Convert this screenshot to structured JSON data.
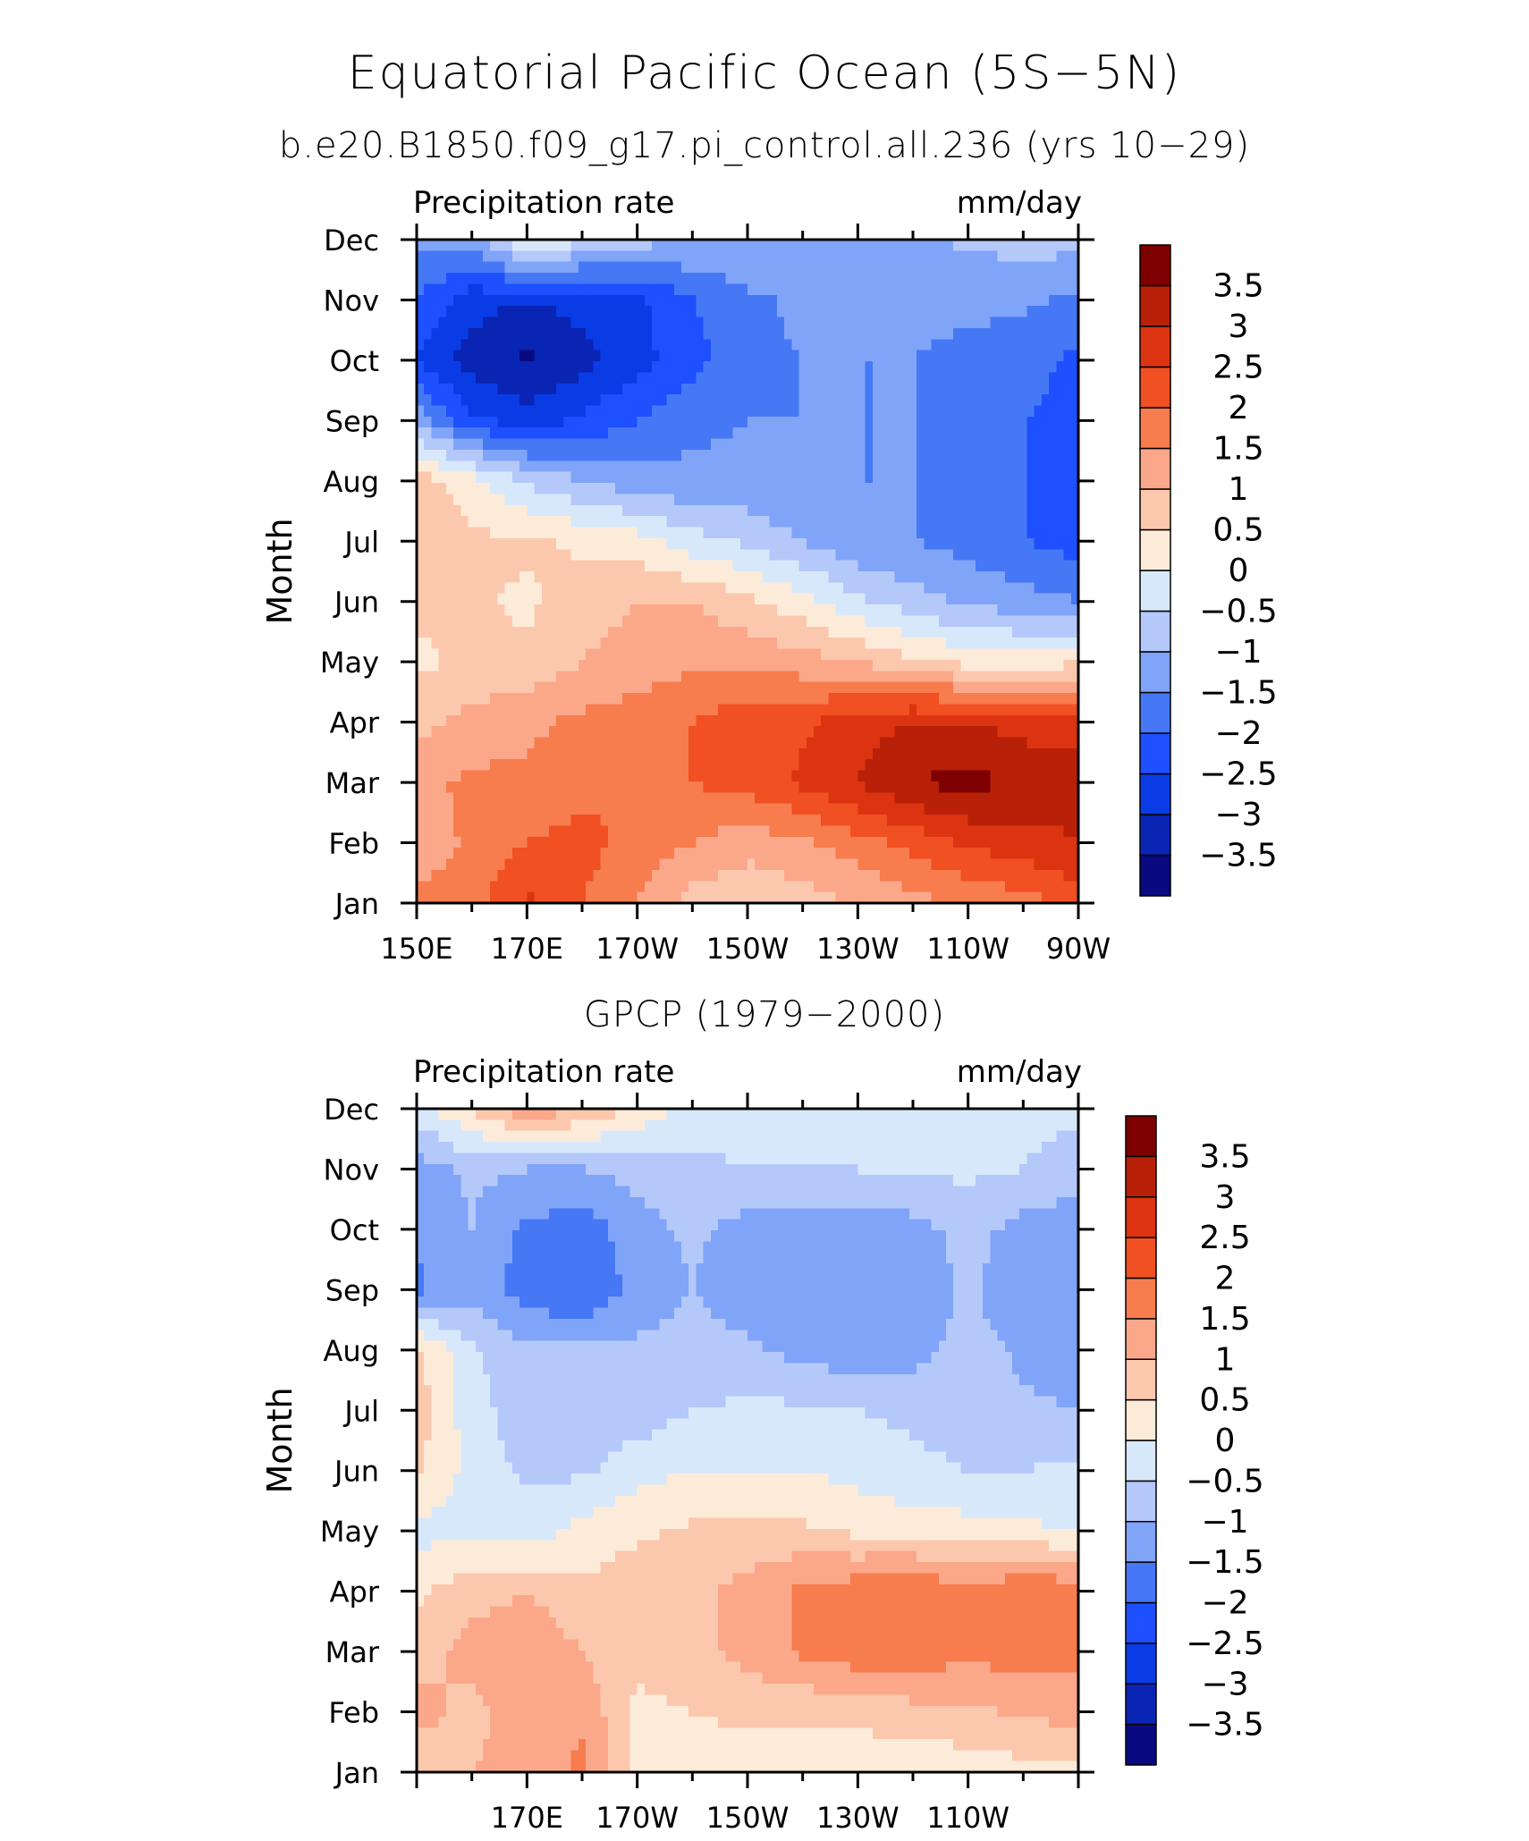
{
  "title": "Equatorial Pacific Ocean (5S−5N)",
  "color_levels": [
    -3.5,
    -3,
    -2.5,
    -2,
    -1.5,
    -1,
    -0.5,
    0,
    0.5,
    1,
    1.5,
    2,
    2.5,
    3,
    3.5
  ],
  "color_level_labels": [
    "−3.5",
    "−3",
    "−2.5",
    "−2",
    "−1.5",
    "−1",
    "−0.5",
    "0",
    "0.5",
    "1",
    "1.5",
    "2",
    "2.5",
    "3",
    "3.5"
  ],
  "palette": [
    "#0a0a80",
    "#0a24b4",
    "#0a3ce6",
    "#1e50ff",
    "#4678f5",
    "#80a4f8",
    "#b4c8fa",
    "#d8e8fb",
    "#fdebd9",
    "#fcc8ad",
    "#fba88a",
    "#f77c4e",
    "#f05022",
    "#dc3410",
    "#b82008",
    "#7e0000"
  ],
  "chart_data": [
    {
      "type": "heatmap",
      "title": "b.e20.B1850.f09_g17.pi_control.all.236 (yrs 10−29)",
      "field": "Precipitation rate",
      "units": "mm/day",
      "ylabel": "Month",
      "x_ticks": [
        "150E",
        "170E",
        "170W",
        "150W",
        "130W",
        "110W",
        "90W"
      ],
      "y_ticks": [
        "Jan",
        "Feb",
        "Mar",
        "Apr",
        "May",
        "Jun",
        "Jul",
        "Aug",
        "Sep",
        "Oct",
        "Nov",
        "Dec"
      ],
      "x": [
        150,
        160,
        170,
        180,
        190,
        200,
        210,
        220,
        230,
        240,
        250,
        260,
        270
      ],
      "months": [
        "Jan",
        "Feb",
        "Mar",
        "Apr",
        "May",
        "Jun",
        "Jul",
        "Aug",
        "Sep",
        "Oct",
        "Nov",
        "Dec"
      ],
      "values": [
        [
          1.6,
          1.8,
          2.6,
          2.0,
          1.5,
          0.8,
          0.6,
          0.8,
          1.0,
          1.3,
          1.6,
          1.8,
          2.2
        ],
        [
          1.2,
          1.6,
          2.0,
          2.2,
          1.8,
          1.5,
          1.2,
          1.4,
          1.8,
          2.2,
          2.6,
          2.8,
          3.0
        ],
        [
          1.4,
          1.6,
          1.6,
          1.8,
          2.0,
          2.0,
          2.2,
          2.6,
          3.0,
          3.5,
          3.7,
          3.4,
          3.2
        ],
        [
          0.8,
          1.2,
          1.4,
          1.6,
          1.8,
          2.0,
          2.3,
          2.4,
          2.8,
          3.0,
          3.0,
          2.8,
          2.8
        ],
        [
          0.4,
          0.6,
          0.6,
          1.0,
          1.2,
          1.4,
          1.4,
          1.2,
          1.0,
          0.6,
          0.3,
          0.2,
          0.4
        ],
        [
          0.6,
          0.6,
          0.4,
          0.8,
          1.0,
          1.0,
          0.6,
          0.2,
          -0.4,
          -0.8,
          -1.1,
          -1.3,
          -1.5
        ],
        [
          0.8,
          0.6,
          0.6,
          0.4,
          0.2,
          -0.3,
          -0.6,
          -1.0,
          -1.4,
          -1.5,
          -1.7,
          -2.0,
          -2.2
        ],
        [
          0.8,
          0.2,
          -0.6,
          -1.0,
          -1.3,
          -1.4,
          -1.4,
          -1.5,
          -1.5,
          -1.5,
          -1.6,
          -2.0,
          -2.2
        ],
        [
          -1.2,
          -2.4,
          -2.8,
          -2.4,
          -2.0,
          -1.6,
          -1.5,
          -1.5,
          -1.5,
          -1.5,
          -1.6,
          -2.0,
          -2.2
        ],
        [
          -2.6,
          -3.2,
          -3.6,
          -3.2,
          -2.7,
          -2.2,
          -1.6,
          -1.5,
          -1.5,
          -1.5,
          -1.6,
          -1.8,
          -2.1
        ],
        [
          -2.0,
          -2.8,
          -3.0,
          -2.8,
          -2.6,
          -2.0,
          -1.6,
          -1.4,
          -1.4,
          -1.4,
          -1.4,
          -1.4,
          -1.6
        ],
        [
          -1.4,
          -1.2,
          0.2,
          -0.4,
          -0.8,
          -1.0,
          -1.0,
          -1.2,
          -1.2,
          -1.1,
          -0.9,
          -0.8,
          -0.8
        ]
      ]
    },
    {
      "type": "heatmap",
      "title": "GPCP (1979−2000)",
      "field": "Precipitation rate",
      "units": "mm/day",
      "ylabel": "Month",
      "x_ticks": [
        "170E",
        "170W",
        "150W",
        "130W",
        "110W"
      ],
      "y_ticks": [
        "Jan",
        "Feb",
        "Mar",
        "Apr",
        "May",
        "Jun",
        "Jul",
        "Aug",
        "Sep",
        "Oct",
        "Nov",
        "Dec"
      ],
      "x": [
        150,
        160,
        170,
        180,
        190,
        200,
        210,
        220,
        230,
        240,
        250,
        260,
        270
      ],
      "months": [
        "Jan",
        "Feb",
        "Mar",
        "Apr",
        "May",
        "Jun",
        "Jul",
        "Aug",
        "Sep",
        "Oct",
        "Nov",
        "Dec"
      ],
      "values": [
        [
          0.6,
          1.0,
          1.2,
          1.6,
          0.3,
          0.3,
          0.3,
          0.2,
          0.1,
          0.1,
          0.2,
          0.3,
          0.3
        ],
        [
          1.2,
          0.8,
          1.4,
          1.4,
          0.4,
          0.5,
          0.6,
          0.6,
          0.7,
          0.8,
          0.9,
          1.1,
          1.2
        ],
        [
          0.8,
          1.2,
          1.4,
          1.0,
          0.6,
          0.8,
          1.2,
          1.6,
          1.8,
          1.9,
          1.6,
          1.8,
          1.6
        ],
        [
          0.4,
          0.8,
          1.0,
          0.6,
          0.8,
          0.8,
          1.2,
          1.6,
          1.8,
          2.0,
          1.6,
          2.0,
          1.8
        ],
        [
          -0.2,
          -0.1,
          -0.3,
          0.2,
          0.4,
          0.6,
          0.6,
          0.6,
          0.4,
          0.3,
          0.2,
          0.1,
          0.0
        ],
        [
          0.6,
          -0.2,
          -0.6,
          -0.6,
          -0.2,
          0.0,
          0.0,
          0.0,
          -0.2,
          -0.4,
          -0.5,
          -0.5,
          -0.4
        ],
        [
          0.8,
          -0.3,
          -0.8,
          -0.8,
          -0.8,
          -0.5,
          -0.4,
          -0.4,
          -0.5,
          -0.6,
          -0.7,
          -0.9,
          -1.0
        ],
        [
          0.6,
          -0.4,
          -0.9,
          -0.9,
          -0.9,
          -0.8,
          -0.9,
          -1.2,
          -1.3,
          -1.2,
          -0.8,
          -1.1,
          -1.3
        ],
        [
          -1.6,
          -1.2,
          -1.8,
          -2.0,
          -1.3,
          -1.0,
          -1.3,
          -1.4,
          -1.5,
          -1.4,
          -0.9,
          -1.4,
          -1.4
        ],
        [
          -1.4,
          -1.0,
          -1.6,
          -1.8,
          -1.2,
          -0.9,
          -1.2,
          -1.3,
          -1.3,
          -1.2,
          -0.8,
          -1.2,
          -1.4
        ],
        [
          -1.2,
          -0.9,
          -1.0,
          -1.0,
          -0.8,
          -0.6,
          -0.5,
          -0.5,
          -0.5,
          -0.4,
          -0.4,
          -0.5,
          -0.7
        ],
        [
          -0.3,
          0.6,
          1.4,
          1.0,
          0.4,
          -0.2,
          -0.4,
          -0.5,
          -0.4,
          -0.4,
          -0.4,
          -0.4,
          -0.4
        ]
      ]
    }
  ]
}
